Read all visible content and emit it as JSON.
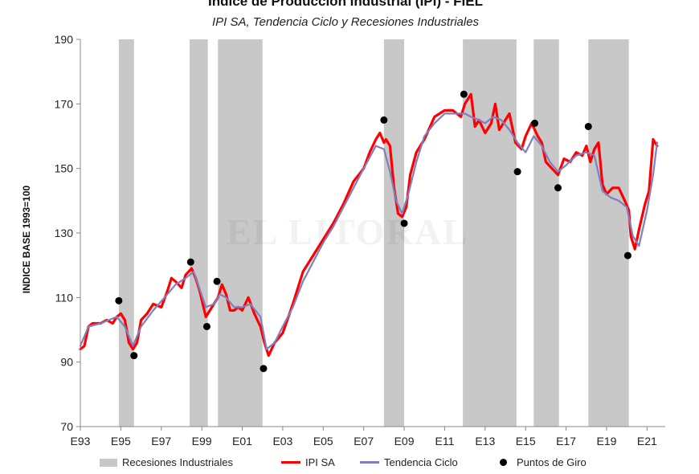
{
  "chart_data": {
    "type": "line",
    "title": "Indice de Producción Industrial (IPI) - FIEL",
    "subtitle": "IPI SA, Tendencia Ciclo y Recesiones Industriales",
    "watermark": "EL LITORAL",
    "xlabel": "",
    "ylabel": "INDICE BASE 1993=100",
    "xlim": [
      1993.0,
      2021.9
    ],
    "ylim": [
      70,
      190
    ],
    "yticks": [
      70,
      90,
      110,
      130,
      150,
      170,
      190
    ],
    "xtick_labels": [
      "E93",
      "E95",
      "E97",
      "E99",
      "E01",
      "E03",
      "E05",
      "E07",
      "E09",
      "E11",
      "E13",
      "E15",
      "E17",
      "E19",
      "E21"
    ],
    "xtick_values": [
      1993,
      1995,
      1997,
      1999,
      2001,
      2003,
      2005,
      2007,
      2009,
      2011,
      2013,
      2015,
      2017,
      2019,
      2021
    ],
    "grid": false,
    "legend": {
      "position": "bottom",
      "entries": [
        "Recesiones Industriales",
        "IPI SA",
        "Tendencia Ciclo",
        "Puntos de Giro"
      ]
    },
    "colors": {
      "recession": "#c8c8c8",
      "ipi": "#ff0000",
      "trend": "#7f7fbf",
      "points": "#000000",
      "axis": "#888888"
    },
    "recessions": [
      {
        "start": 1994.9,
        "end": 1995.65
      },
      {
        "start": 1998.4,
        "end": 1999.3
      },
      {
        "start": 1999.8,
        "end": 2002.0
      },
      {
        "start": 2008.0,
        "end": 2009.0
      },
      {
        "start": 2011.9,
        "end": 2014.55
      },
      {
        "start": 2015.4,
        "end": 2016.65
      },
      {
        "start": 2018.1,
        "end": 2020.1
      }
    ],
    "series": [
      {
        "name": "IPI SA",
        "x": [
          1993.0,
          1993.2,
          1993.4,
          1993.6,
          1993.8,
          1994.0,
          1994.3,
          1994.6,
          1994.8,
          1995.0,
          1995.2,
          1995.4,
          1995.6,
          1995.8,
          1996.0,
          1996.3,
          1996.6,
          1997.0,
          1997.3,
          1997.5,
          1997.7,
          1998.0,
          1998.2,
          1998.5,
          1998.7,
          1998.9,
          1999.2,
          1999.5,
          1999.8,
          2000.0,
          2000.2,
          2000.4,
          2000.6,
          2000.8,
          2001.0,
          2001.3,
          2001.6,
          2001.9,
          2002.1,
          2002.3,
          2002.6,
          2003.0,
          2003.5,
          2004.0,
          2004.5,
          2005.0,
          2005.5,
          2006.0,
          2006.5,
          2007.0,
          2007.3,
          2007.6,
          2007.8,
          2008.0,
          2008.1,
          2008.3,
          2008.5,
          2008.7,
          2008.9,
          2009.1,
          2009.3,
          2009.6,
          2010.0,
          2010.5,
          2011.0,
          2011.4,
          2011.8,
          2012.0,
          2012.3,
          2012.5,
          2012.7,
          2013.0,
          2013.3,
          2013.5,
          2013.7,
          2014.0,
          2014.2,
          2014.5,
          2014.8,
          2015.0,
          2015.3,
          2015.6,
          2015.8,
          2016.0,
          2016.3,
          2016.6,
          2016.9,
          2017.2,
          2017.5,
          2017.8,
          2018.0,
          2018.2,
          2018.4,
          2018.6,
          2018.8,
          2019.0,
          2019.3,
          2019.6,
          2019.9,
          2020.1,
          2020.2,
          2020.4,
          2020.6,
          2020.9,
          2021.1,
          2021.3,
          2021.5
        ],
        "values": [
          94,
          95,
          101,
          102,
          102,
          102,
          103,
          102,
          104,
          105,
          103,
          96,
          94,
          96,
          103,
          105,
          108,
          107,
          112,
          116,
          115,
          113,
          117,
          119,
          116,
          112,
          104,
          107,
          110,
          114,
          111,
          106,
          106,
          107,
          106,
          110,
          105,
          101,
          96,
          92,
          96,
          99,
          108,
          118,
          123,
          128,
          133,
          139,
          146,
          150,
          155,
          159,
          161,
          158,
          159,
          157,
          144,
          136,
          135,
          138,
          148,
          155,
          159,
          166,
          168,
          168,
          166,
          170,
          173,
          163,
          165,
          161,
          164,
          170,
          162,
          165,
          167,
          158,
          156,
          160,
          164,
          160,
          158,
          152,
          150,
          148,
          153,
          152,
          155,
          154,
          157,
          152,
          156,
          158,
          145,
          142,
          144,
          144,
          140,
          137,
          129,
          125,
          131,
          139,
          143,
          159,
          157
        ]
      },
      {
        "name": "Tendencia Ciclo",
        "x": [
          1993.0,
          1993.4,
          1994.0,
          1994.8,
          1995.2,
          1995.6,
          1996.0,
          1996.6,
          1997.3,
          1997.7,
          1998.2,
          1998.6,
          1999.2,
          1999.6,
          1999.9,
          2000.2,
          2000.6,
          2001.0,
          2001.4,
          2001.9,
          2002.2,
          2002.6,
          2003.0,
          2003.5,
          2004.0,
          2004.5,
          2005.0,
          2005.5,
          2006.0,
          2006.5,
          2007.0,
          2007.6,
          2008.0,
          2008.3,
          2008.6,
          2008.9,
          2009.2,
          2009.6,
          2010.0,
          2010.5,
          2011.0,
          2011.5,
          2012.0,
          2012.3,
          2012.7,
          2013.0,
          2013.4,
          2013.8,
          2014.2,
          2014.6,
          2015.0,
          2015.4,
          2015.8,
          2016.2,
          2016.6,
          2017.0,
          2017.5,
          2018.0,
          2018.4,
          2018.8,
          2019.2,
          2019.6,
          2020.0,
          2020.3,
          2020.6,
          2021.0,
          2021.3,
          2021.5
        ],
        "values": [
          95,
          101,
          102,
          104,
          101,
          95,
          101,
          106,
          111,
          114,
          116,
          118,
          107,
          108,
          111,
          110,
          107,
          107,
          108,
          104,
          94,
          96,
          101,
          107,
          115,
          121,
          127,
          132,
          138,
          144,
          150,
          157,
          156,
          149,
          140,
          136,
          142,
          152,
          160,
          164,
          167,
          167,
          167,
          166,
          165,
          164,
          166,
          165,
          162,
          158,
          155,
          160,
          157,
          152,
          149,
          151,
          154,
          155,
          154,
          143,
          141,
          140,
          138,
          129,
          126,
          137,
          148,
          158
        ]
      }
    ],
    "turning_points": [
      {
        "x": 1994.9,
        "y": 109
      },
      {
        "x": 1995.65,
        "y": 92
      },
      {
        "x": 1998.45,
        "y": 121
      },
      {
        "x": 1999.25,
        "y": 101
      },
      {
        "x": 1999.75,
        "y": 115
      },
      {
        "x": 2002.05,
        "y": 88
      },
      {
        "x": 2008.0,
        "y": 165
      },
      {
        "x": 2009.0,
        "y": 133
      },
      {
        "x": 2011.95,
        "y": 173
      },
      {
        "x": 2014.6,
        "y": 149
      },
      {
        "x": 2015.45,
        "y": 164
      },
      {
        "x": 2016.6,
        "y": 144
      },
      {
        "x": 2018.1,
        "y": 163
      },
      {
        "x": 2020.05,
        "y": 123
      }
    ]
  }
}
